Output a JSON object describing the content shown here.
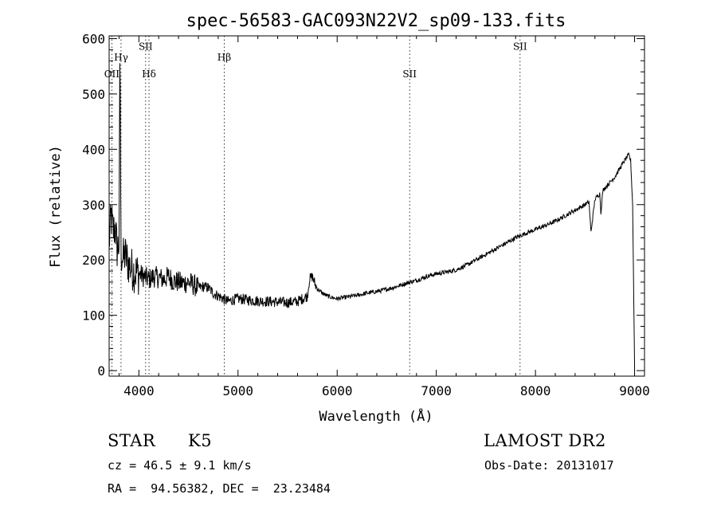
{
  "chart_data": {
    "type": "line",
    "title": "spec-56583-GAC093N22V2_sp09-133.fits",
    "xlabel": "Wavelength (Å)",
    "ylabel": "Flux (relative)",
    "xlim": [
      3700,
      9100
    ],
    "ylim": [
      -10,
      605
    ],
    "xticks": [
      4000,
      5000,
      6000,
      7000,
      8000,
      9000
    ],
    "yticks": [
      0,
      100,
      200,
      300,
      400,
      500,
      600
    ],
    "grid": false,
    "lines": [
      {
        "name": "OII",
        "x": 3727,
        "label_y": 530
      },
      {
        "name": "Hγ",
        "x": 3820,
        "label_y": 560
      },
      {
        "name": "SII",
        "x": 4068,
        "label_y": 580
      },
      {
        "name": "Hδ",
        "x": 4102,
        "label_y": 530
      },
      {
        "name": "Hβ",
        "x": 4861,
        "label_y": 560
      },
      {
        "name": "SII",
        "x": 6731,
        "label_y": 530
      },
      {
        "name": "SII",
        "x": 7845,
        "label_y": 580
      }
    ],
    "series": [
      {
        "x": [
          3700,
          3720,
          3740,
          3760,
          3780,
          3800,
          3810,
          3820,
          3830,
          3840,
          3860,
          3900,
          3950,
          4000,
          4050,
          4100,
          4150,
          4200,
          4250,
          4300,
          4350,
          4400,
          4450,
          4500,
          4550,
          4600,
          4650,
          4700,
          4750,
          4800,
          4850,
          4900,
          4950,
          5000,
          5100,
          5200,
          5300,
          5400,
          5500,
          5600,
          5700,
          5720,
          5750,
          5780,
          5800,
          5850,
          5900,
          5950,
          6000,
          6100,
          6200,
          6300,
          6400,
          6500,
          6600,
          6700,
          6800,
          6900,
          7000,
          7100,
          7200,
          7300,
          7400,
          7500,
          7600,
          7700,
          7800,
          7900,
          8000,
          8100,
          8200,
          8300,
          8400,
          8450,
          8500,
          8540,
          8560,
          8600,
          8650,
          8660,
          8680,
          8700,
          8750,
          8800,
          8850,
          8900,
          8940,
          8960,
          8980,
          9000
        ],
        "y": [
          230,
          280,
          250,
          260,
          220,
          230,
          600,
          200,
          215,
          200,
          210,
          190,
          180,
          175,
          170,
          165,
          170,
          168,
          165,
          170,
          162,
          160,
          158,
          160,
          155,
          150,
          152,
          150,
          140,
          135,
          130,
          125,
          128,
          130,
          128,
          126,
          125,
          124,
          123,
          125,
          135,
          165,
          170,
          155,
          148,
          140,
          135,
          132,
          130,
          133,
          136,
          140,
          143,
          147,
          152,
          158,
          163,
          170,
          175,
          178,
          182,
          190,
          200,
          210,
          220,
          230,
          240,
          248,
          255,
          262,
          270,
          280,
          290,
          295,
          300,
          305,
          250,
          310,
          320,
          285,
          325,
          330,
          340,
          350,
          365,
          380,
          390,
          380,
          300,
          0
        ]
      }
    ]
  },
  "info": {
    "class_label": "STAR",
    "subclass": "K5",
    "survey": "LAMOST DR2",
    "cz": "cz = 46.5 ± 9.1 km/s",
    "obs_date": "Obs-Date: 20131017",
    "coords": "RA =  94.56382, DEC =  23.23484"
  }
}
